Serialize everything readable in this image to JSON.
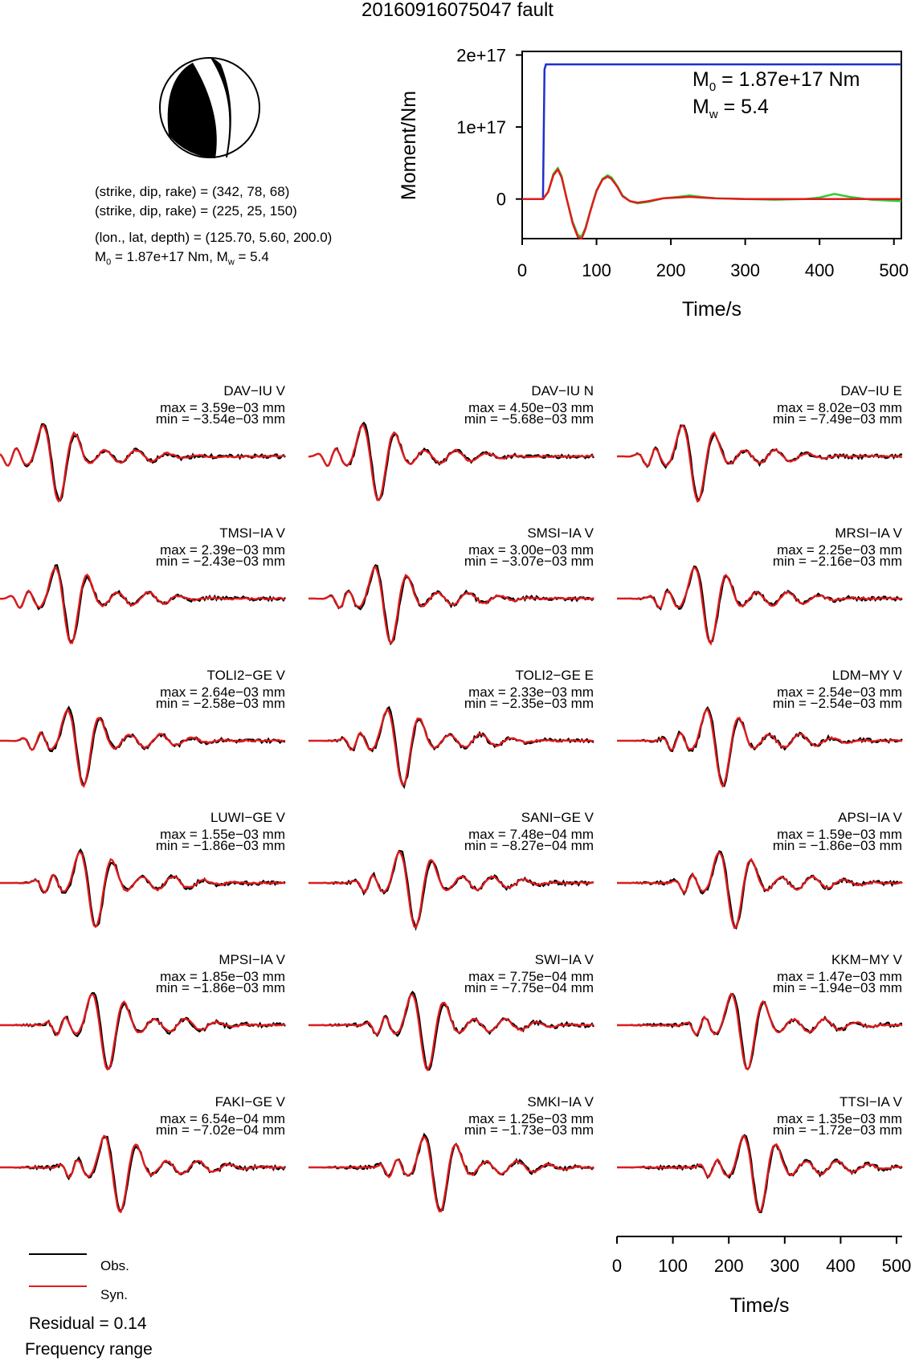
{
  "title": "20160916075047 fault",
  "mechanism": {
    "plane1": "(strike, dip, rake) = (342, 78, 68)",
    "plane2": "(strike, dip, rake) = (225, 25, 150)",
    "location": "(lon., lat, depth) = (125.70, 5.60, 200.0)",
    "moment_prefix": "M",
    "moment_sub": "0",
    "moment_mid": " = 1.87e+17 Nm, M",
    "moment_sub2": "w",
    "moment_tail": " = 5.4"
  },
  "stf_annotation": {
    "m0_label": "M",
    "m0_sub": "0",
    "m0_value": " = 1.87e+17 Nm",
    "mw_label": "M",
    "mw_sub": "w",
    "mw_value": " = 5.4"
  },
  "legend": {
    "obs": "Obs.",
    "syn": "Syn.",
    "residual": "Residual = 0.14",
    "freq": "Frequency range"
  },
  "colors": {
    "obs": "#000000",
    "syn": "#e31a1c",
    "stf": "#1f2fcc",
    "stf_green": "#2ecc2e"
  },
  "chart_data": [
    {
      "type": "line",
      "title": "",
      "xlabel": "Time/s",
      "ylabel": "Moment/Nm",
      "xlim": [
        0,
        510
      ],
      "ylim": [
        -5.5e+16,
        2.05e+17
      ],
      "xticks": [
        "0",
        "100",
        "200",
        "300",
        "400",
        "500"
      ],
      "yticks": [
        "0",
        "1e+17",
        "2e+17"
      ],
      "ytick_values": [
        0,
        1e+17,
        2e+17
      ],
      "series": [
        {
          "x": [
            0,
            28,
            30,
            32,
            510
          ],
          "y": [
            0,
            0,
            1.8e+17,
            1.87e+17,
            1.87e+17
          ]
        },
        {
          "x": [
            0,
            28,
            35,
            42,
            48,
            53,
            60,
            68,
            75,
            80,
            85,
            92,
            100,
            108,
            115,
            120,
            128,
            135,
            145,
            155,
            170,
            190,
            210,
            225,
            240,
            260,
            300,
            340,
            380,
            400,
            420,
            440,
            470,
            510
          ],
          "y": [
            0,
            0,
            1e+16,
            3.5e+16,
            4.3e+16,
            3.2e+16,
            0,
            -3.2e+16,
            -5e+16,
            -5.2e+16,
            -4e+16,
            -1.5e+16,
            1.2e+16,
            2.8e+16,
            3.3e+16,
            3e+16,
            1.8e+16,
            5000000000000000.0,
            -3000000000000000.0,
            -6000000000000000.0,
            -4000000000000000.0,
            1000000000000000.0,
            3000000000000000.0,
            5000000000000000.0,
            3000000000000000.0,
            1000000000000000.0,
            0,
            -1000000000000000.0,
            0,
            2000000000000000.0,
            7000000000000000.0,
            3000000000000000.0,
            -1000000000000000.0,
            -3000000000000000.0
          ]
        },
        {
          "x": [
            0,
            28,
            35,
            42,
            48,
            53,
            60,
            68,
            75,
            80,
            85,
            92,
            100,
            108,
            115,
            120,
            128,
            135,
            145,
            155,
            170,
            190,
            210,
            225,
            240,
            260,
            300,
            340,
            380,
            400,
            420,
            440,
            470,
            510
          ],
          "y": [
            0,
            0,
            1e+16,
            3.3e+16,
            4.1e+16,
            3e+16,
            0,
            -3.4e+16,
            -5.3e+16,
            -5.5e+16,
            -4.2e+16,
            -1.6e+16,
            1.1e+16,
            2.7e+16,
            3.1e+16,
            2.8e+16,
            1.7e+16,
            4000000000000000.0,
            -3000000000000000.0,
            -5000000000000000.0,
            -3000000000000000.0,
            1000000000000000.0,
            2000000000000000.0,
            3000000000000000.0,
            2000000000000000.0,
            1000000000000000.0,
            0,
            0,
            0,
            0,
            0,
            0,
            0,
            0
          ]
        }
      ]
    },
    {
      "type": "line",
      "title": "",
      "xlabel": "Time/s",
      "ylabel": "",
      "xlim": [
        0,
        510
      ],
      "xticks": [
        "0",
        "100",
        "200",
        "300",
        "400",
        "500"
      ],
      "series": [
        {
          "name": "Obs."
        },
        {
          "name": "Syn."
        }
      ],
      "stations": [
        {
          "name": "DAV−IU V",
          "max": "max = 3.59e−03 mm",
          "min": "min = −3.54e−03 mm"
        },
        {
          "name": "DAV−IU N",
          "max": "max = 4.50e−03 mm",
          "min": "min = −5.68e−03 mm"
        },
        {
          "name": "DAV−IU E",
          "max": "max = 8.02e−03 mm",
          "min": "min = −7.49e−03 mm"
        },
        {
          "name": "TMSI−IA V",
          "max": "max = 2.39e−03 mm",
          "min": "min = −2.43e−03 mm"
        },
        {
          "name": "SMSI−IA V",
          "max": "max = 3.00e−03 mm",
          "min": "min = −3.07e−03 mm"
        },
        {
          "name": "MRSI−IA V",
          "max": "max = 2.25e−03 mm",
          "min": "min = −2.16e−03 mm"
        },
        {
          "name": "TOLI2−GE V",
          "max": "max = 2.64e−03 mm",
          "min": "min = −2.58e−03 mm"
        },
        {
          "name": "TOLI2−GE E",
          "max": "max = 2.33e−03 mm",
          "min": "min = −2.35e−03 mm"
        },
        {
          "name": "LDM−MY V",
          "max": "max = 2.54e−03 mm",
          "min": "min = −2.54e−03 mm"
        },
        {
          "name": "LUWI−GE V",
          "max": "max = 1.55e−03 mm",
          "min": "min = −1.86e−03 mm"
        },
        {
          "name": "SANI−GE V",
          "max": "max = 7.48e−04 mm",
          "min": "min = −8.27e−04 mm"
        },
        {
          "name": "APSI−IA V",
          "max": "max = 1.59e−03 mm",
          "min": "min = −1.86e−03 mm"
        },
        {
          "name": "MPSI−IA V",
          "max": "max = 1.85e−03 mm",
          "min": "min = −1.86e−03 mm"
        },
        {
          "name": "SWI−IA V",
          "max": "max = 7.75e−04 mm",
          "min": "min = −7.75e−04 mm"
        },
        {
          "name": "KKM−MY V",
          "max": "max = 1.47e−03 mm",
          "min": "min = −1.94e−03 mm"
        },
        {
          "name": "FAKI−GE V",
          "max": "max = 6.54e−04 mm",
          "min": "min = −7.02e−04 mm"
        },
        {
          "name": "SMKI−IA V",
          "max": "max = 1.25e−03 mm",
          "min": "min = −1.73e−03 mm"
        },
        {
          "name": "TTSI−IA V",
          "max": "max = 1.35e−03 mm",
          "min": "min = −1.72e−03 mm"
        }
      ]
    }
  ]
}
